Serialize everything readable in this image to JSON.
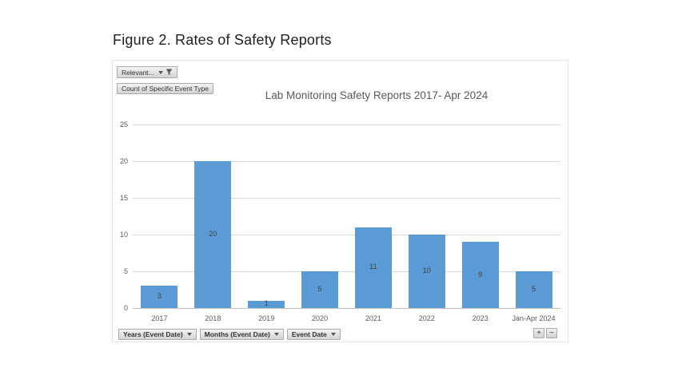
{
  "page": {
    "caption": "Figure 2. Rates of Safety Reports"
  },
  "pivot": {
    "filter_button_label": "Relevant...",
    "value_button_label": "Count of Specific Event Type",
    "axis_buttons": [
      "Years (Event Date)",
      "Months (Event Date)",
      "Event Date"
    ],
    "expand_label": "+",
    "collapse_label": "−"
  },
  "chart_data": {
    "type": "bar",
    "title": "Lab Monitoring Safety Reports 2017- Apr 2024",
    "categories": [
      "2017",
      "2018",
      "2019",
      "2020",
      "2021",
      "2022",
      "2023",
      "Jan-Apr 2024"
    ],
    "values": [
      3,
      20,
      1,
      5,
      11,
      10,
      9,
      5
    ],
    "xlabel": "",
    "ylabel": "",
    "ylim": [
      0,
      25
    ],
    "ytick_step": 5,
    "grid": true,
    "legend": "none",
    "bar_color": "#5B9BD5",
    "bar_label_color": "#404040",
    "axis_text_color": "#595959",
    "gridline_color": "#D9D9D9"
  }
}
